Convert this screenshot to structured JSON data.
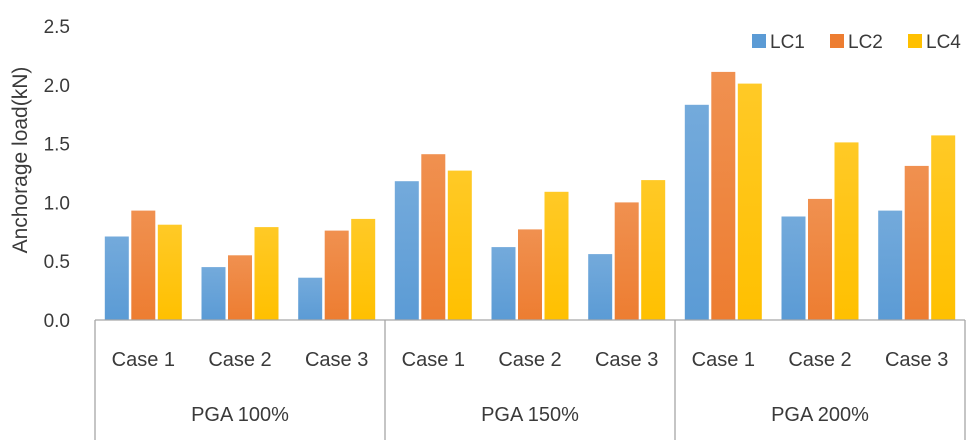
{
  "chart_data": {
    "type": "bar",
    "title": "",
    "xlabel": "",
    "ylabel": "Anchorage load(kN)",
    "ylim": [
      0,
      2.5
    ],
    "yticks": [
      "0.0",
      "0.5",
      "1.0",
      "1.5",
      "2.0",
      "2.5"
    ],
    "grid": false,
    "legend_position": "top-right",
    "groups": [
      {
        "label": "PGA 100%",
        "categories": [
          "Case 1",
          "Case 2",
          "Case 3"
        ]
      },
      {
        "label": "PGA 150%",
        "categories": [
          "Case 1",
          "Case 2",
          "Case 3"
        ]
      },
      {
        "label": "PGA 200%",
        "categories": [
          "Case 1",
          "Case 2",
          "Case 3"
        ]
      }
    ],
    "series": [
      {
        "name": "LC1",
        "color": "#5B9BD5",
        "values": [
          0.71,
          0.45,
          0.36,
          1.18,
          0.62,
          0.56,
          1.83,
          0.88,
          0.93
        ]
      },
      {
        "name": "LC2",
        "color": "#ED7D31",
        "values": [
          0.93,
          0.55,
          0.76,
          1.41,
          0.77,
          1.0,
          2.11,
          1.03,
          1.31
        ]
      },
      {
        "name": "LC4",
        "color": "#FFC000",
        "values": [
          0.81,
          0.79,
          0.86,
          1.27,
          1.09,
          1.19,
          2.01,
          1.51,
          1.57
        ]
      }
    ]
  }
}
